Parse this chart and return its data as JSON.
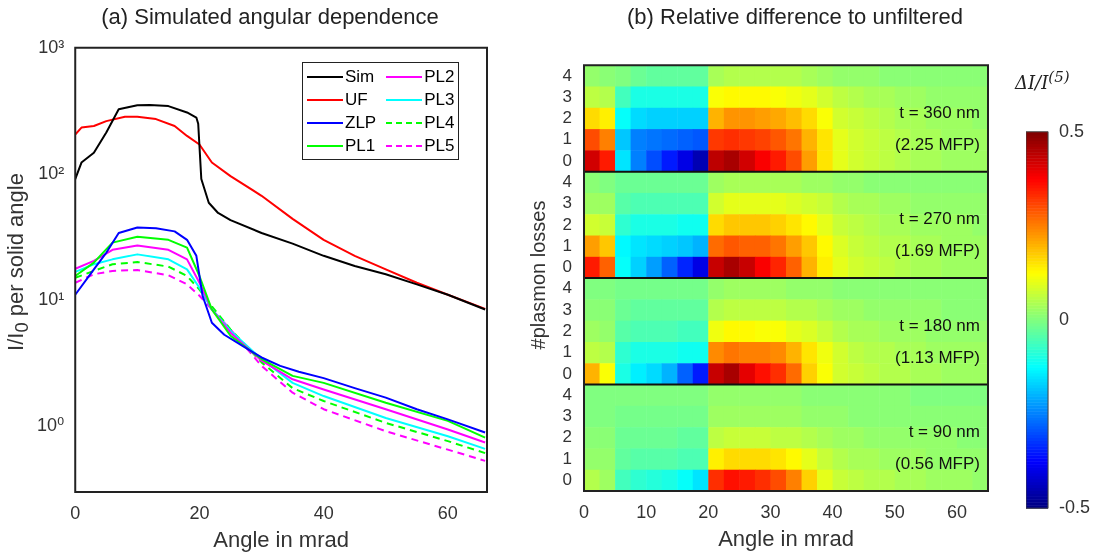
{
  "chart_data": [
    {
      "type": "line",
      "title": "(a) Simulated angular dependence",
      "xlabel": "Angle in mrad",
      "ylabel": "I/I$_{0}$ per solid angle",
      "log": "y",
      "legend": "top right",
      "marker": "none",
      "xlim": [
        0,
        66.3
      ],
      "xticks": [
        0,
        20,
        40,
        60
      ],
      "ylim": [
        0.3,
        1000
      ],
      "yticks": [
        {
          "value": 1,
          "label": "10⁰"
        },
        {
          "value": 10,
          "label": "10¹"
        },
        {
          "value": 100,
          "label": "10²"
        },
        {
          "value": 1000,
          "label": "10³"
        }
      ],
      "series": [
        {
          "name": "Sim",
          "color": "#000000",
          "line_style": "solid",
          "x": [
            0,
            1,
            3,
            5,
            7,
            10,
            12,
            15,
            18,
            19.5,
            19.8,
            20.3,
            21.5,
            23,
            25,
            30,
            35,
            40,
            45,
            50,
            55,
            60,
            66
          ],
          "values": [
            91,
            123,
            147,
            213,
            325,
            350,
            352,
            345,
            307,
            280,
            250,
            91,
            59,
            49,
            43,
            34,
            28,
            22.4,
            18.6,
            16,
            13.3,
            11,
            8.4
          ]
        },
        {
          "name": "UF",
          "color": "#ff0000",
          "line_style": "solid",
          "x": [
            0,
            1,
            3,
            5,
            8,
            10,
            13,
            16,
            18,
            20,
            22,
            25,
            30,
            35,
            40,
            45,
            50,
            55,
            60,
            66
          ],
          "values": [
            205,
            233,
            240,
            262,
            284,
            284,
            272,
            240,
            200,
            171,
            123,
            96,
            67,
            44,
            30,
            22.4,
            17.5,
            13.7,
            11,
            8.5
          ]
        },
        {
          "name": "ZLP",
          "color": "#0000ff",
          "line_style": "solid",
          "x": [
            0,
            3,
            5,
            7,
            10,
            13,
            16,
            18,
            19.5,
            20.5,
            22,
            24,
            27,
            30,
            33,
            36,
            40,
            45,
            50,
            55,
            60,
            66
          ],
          "values": [
            11,
            17.5,
            23.7,
            34,
            37.6,
            37,
            35,
            30,
            22.4,
            10.8,
            6.6,
            5.3,
            4.3,
            3.5,
            3,
            2.7,
            2.4,
            2,
            1.68,
            1.36,
            1.13,
            0.89
          ]
        },
        {
          "name": "PL1",
          "color": "#00ff00",
          "line_style": "solid",
          "x": [
            0,
            3,
            6,
            10,
            15,
            18,
            20,
            22,
            25,
            30,
            35,
            40,
            50,
            60,
            66
          ],
          "values": [
            15.5,
            19.8,
            28.5,
            31.7,
            30,
            26,
            15.5,
            8.4,
            5.2,
            3.4,
            2.5,
            2.2,
            1.53,
            1.1,
            0.81
          ]
        },
        {
          "name": "PL2",
          "color": "#ff00ff",
          "line_style": "solid",
          "x": [
            0,
            3,
            6,
            10,
            15,
            18,
            20,
            22,
            25,
            30,
            35,
            40,
            50,
            60,
            66
          ],
          "values": [
            17.7,
            20.4,
            25,
            27,
            25,
            21,
            13.7,
            8.4,
            5.5,
            3.3,
            2.35,
            1.95,
            1.36,
            0.94,
            0.74
          ]
        },
        {
          "name": "PL3",
          "color": "#00ffff",
          "line_style": "solid",
          "x": [
            0,
            3,
            6,
            10,
            15,
            18,
            20,
            22,
            25,
            30,
            35,
            40,
            50,
            60,
            66
          ],
          "values": [
            16.7,
            19.2,
            21,
            23,
            21,
            17.5,
            12.5,
            8.4,
            5.7,
            3.4,
            2.2,
            1.73,
            1.16,
            0.83,
            0.66
          ]
        },
        {
          "name": "PL4",
          "color": "#00ff00",
          "line_style": "dashed",
          "x": [
            0,
            3,
            6,
            10,
            15,
            18,
            20,
            22,
            25,
            30,
            35,
            40,
            50,
            60,
            66
          ],
          "values": [
            15,
            17,
            19.2,
            20,
            18.4,
            15.5,
            12.1,
            8.9,
            5.85,
            3.2,
            2,
            1.58,
            1.06,
            0.76,
            0.61
          ]
        },
        {
          "name": "PL5",
          "color": "#ff00ff",
          "line_style": "dashed",
          "x": [
            0,
            3,
            6,
            10,
            15,
            18,
            20,
            22,
            25,
            30,
            35,
            40,
            50,
            60,
            66
          ],
          "values": [
            13.7,
            16,
            17,
            17.3,
            15.7,
            13.3,
            10.8,
            8.4,
            5.85,
            3,
            1.84,
            1.36,
            0.91,
            0.65,
            0.53
          ]
        }
      ]
    },
    {
      "type": "heatmap",
      "title": "(b) Relative difference to unfiltered",
      "ylabel": "#plasmon losses",
      "xlabel": "Angle in mrad",
      "clabel": "ΔI/I$^{(5)}$",
      "annotations": [
        "t = 360 nm",
        "(2.25 MFP)",
        "t = 270 nm",
        "(1.69 MFP)",
        "t = 180 nm",
        "(1.13 MFP)",
        "t = 90 nm",
        "(0.56 MFP)"
      ],
      "xlim": [
        0,
        65
      ],
      "xticks": [
        0,
        10,
        20,
        30,
        40,
        50,
        60
      ],
      "clim": [
        -0.5,
        0.5
      ],
      "cticks": [
        -0.5,
        0,
        0.5
      ],
      "x": [
        1.25,
        3.75,
        6.25,
        8.75,
        11.25,
        13.75,
        16.25,
        18.75,
        21.25,
        23.75,
        26.25,
        28.75,
        31.25,
        33.75,
        36.25,
        38.75,
        41.25,
        43.75,
        46.25,
        48.75,
        51.25,
        53.75,
        56.25,
        58.75,
        61.25,
        63.75
      ],
      "y_categories": [
        "4",
        "3",
        "2",
        "1",
        "0",
        "4",
        "3",
        "2",
        "1",
        "0",
        "4",
        "3",
        "2",
        "1",
        "0",
        "4",
        "3",
        "2",
        "1",
        "0"
      ],
      "cells": [
        [
          0.02,
          0.01,
          0,
          -0.02,
          -0.03,
          -0.03,
          -0.03,
          -0.03,
          0.04,
          0.05,
          0.05,
          0.05,
          0.05,
          0.05,
          0.04,
          0.03,
          0.02,
          0.02,
          0.02,
          0.01,
          0.01,
          0.01,
          0.01,
          0.01,
          0.01,
          0.01
        ],
        [
          0.06,
          0.05,
          -0.06,
          -0.1,
          -0.1,
          -0.1,
          -0.1,
          -0.1,
          0.12,
          0.13,
          0.13,
          0.13,
          0.12,
          0.11,
          0.1,
          0.08,
          0.06,
          0.05,
          0.04,
          0.04,
          0.03,
          0.03,
          0.02,
          0.02,
          0.02,
          0.02
        ],
        [
          0.16,
          0.14,
          -0.12,
          -0.16,
          -0.17,
          -0.17,
          -0.17,
          -0.17,
          0.2,
          0.23,
          0.23,
          0.22,
          0.21,
          0.19,
          0.16,
          0.12,
          0.08,
          0.07,
          0.06,
          0.05,
          0.04,
          0.04,
          0.03,
          0.03,
          0.03,
          0.02
        ],
        [
          0.3,
          0.25,
          -0.18,
          -0.25,
          -0.26,
          -0.27,
          -0.28,
          -0.29,
          0.32,
          0.33,
          0.32,
          0.31,
          0.29,
          0.26,
          0.2,
          0.15,
          0.1,
          0.08,
          0.07,
          0.06,
          0.05,
          0.04,
          0.04,
          0.03,
          0.03,
          0.03
        ],
        [
          0.42,
          0.35,
          -0.15,
          -0.25,
          -0.3,
          -0.35,
          -0.4,
          -0.45,
          0.44,
          0.46,
          0.42,
          0.38,
          0.35,
          0.3,
          0.22,
          0.15,
          0.1,
          0.08,
          0.07,
          0.06,
          0.05,
          0.04,
          0.04,
          0.03,
          0.03,
          0.03
        ],
        [
          0.01,
          0,
          -0.02,
          -0.02,
          -0.02,
          -0.02,
          -0.02,
          -0.02,
          0.03,
          0.04,
          0.04,
          0.04,
          0.04,
          0.04,
          0.03,
          0.03,
          0.02,
          0.02,
          0.01,
          0.01,
          0.01,
          0.01,
          0.01,
          0.01,
          0.01,
          0.01
        ],
        [
          0.03,
          0.03,
          -0.04,
          -0.05,
          -0.05,
          -0.05,
          -0.05,
          -0.05,
          0.08,
          0.1,
          0.1,
          0.1,
          0.1,
          0.09,
          0.08,
          0.07,
          0.05,
          0.04,
          0.04,
          0.03,
          0.03,
          0.02,
          0.02,
          0.02,
          0.02,
          0.02
        ],
        [
          0.08,
          0.07,
          -0.08,
          -0.1,
          -0.1,
          -0.1,
          -0.11,
          -0.11,
          0.16,
          0.18,
          0.18,
          0.18,
          0.17,
          0.15,
          0.13,
          0.1,
          0.07,
          0.06,
          0.05,
          0.04,
          0.04,
          0.03,
          0.03,
          0.03,
          0.03,
          0.02
        ],
        [
          0.22,
          0.18,
          -0.13,
          -0.15,
          -0.16,
          -0.17,
          -0.18,
          -0.2,
          0.27,
          0.29,
          0.28,
          0.28,
          0.26,
          0.22,
          0.18,
          0.13,
          0.09,
          0.07,
          0.06,
          0.05,
          0.05,
          0.04,
          0.04,
          0.03,
          0.03,
          0.03
        ],
        [
          0.35,
          0.28,
          -0.12,
          -0.17,
          -0.22,
          -0.28,
          -0.34,
          -0.4,
          0.43,
          0.46,
          0.43,
          0.38,
          0.34,
          0.28,
          0.2,
          0.14,
          0.1,
          0.08,
          0.07,
          0.06,
          0.05,
          0.04,
          0.04,
          0.03,
          0.03,
          0.03
        ],
        [
          0,
          0,
          -0.01,
          -0.01,
          -0.01,
          -0.01,
          -0.01,
          -0.01,
          0.02,
          0.03,
          0.03,
          0.03,
          0.03,
          0.02,
          0.02,
          0.02,
          0.01,
          0.01,
          0.01,
          0.01,
          0.01,
          0.01,
          0.01,
          0.01,
          0.01,
          0.01
        ],
        [
          0.01,
          0.01,
          -0.02,
          -0.03,
          -0.03,
          -0.03,
          -0.03,
          -0.03,
          0.05,
          0.06,
          0.06,
          0.06,
          0.06,
          0.05,
          0.05,
          0.04,
          0.03,
          0.03,
          0.02,
          0.02,
          0.02,
          0.02,
          0.02,
          0.01,
          0.01,
          0.01
        ],
        [
          0.03,
          0.02,
          -0.04,
          -0.05,
          -0.05,
          -0.05,
          -0.06,
          -0.06,
          0.11,
          0.13,
          0.13,
          0.12,
          0.12,
          0.1,
          0.09,
          0.07,
          0.05,
          0.04,
          0.04,
          0.03,
          0.03,
          0.03,
          0.02,
          0.02,
          0.02,
          0.02
        ],
        [
          0.06,
          0.05,
          -0.08,
          -0.1,
          -0.1,
          -0.1,
          -0.11,
          -0.11,
          0.24,
          0.26,
          0.25,
          0.25,
          0.24,
          0.2,
          0.15,
          0.11,
          0.08,
          0.06,
          0.05,
          0.05,
          0.04,
          0.04,
          0.03,
          0.03,
          0.03,
          0.03
        ],
        [
          0.2,
          0.12,
          -0.1,
          -0.14,
          -0.16,
          -0.2,
          -0.28,
          -0.35,
          0.43,
          0.46,
          0.4,
          0.36,
          0.33,
          0.27,
          0.17,
          0.12,
          0.08,
          0.07,
          0.06,
          0.05,
          0.05,
          0.04,
          0.04,
          0.03,
          0.03,
          0.03
        ],
        [
          0,
          0,
          0,
          0,
          0,
          0,
          0,
          0,
          0.02,
          0.02,
          0.02,
          0.02,
          0.02,
          0.02,
          0.01,
          0.01,
          0.01,
          0.01,
          0.01,
          0.01,
          0.01,
          0,
          0,
          0,
          0,
          0
        ],
        [
          0,
          0,
          -0.01,
          -0.01,
          -0.01,
          -0.01,
          -0.01,
          -0.01,
          0.03,
          0.03,
          0.03,
          0.03,
          0.03,
          0.03,
          0.02,
          0.02,
          0.02,
          0.01,
          0.01,
          0.01,
          0.01,
          0.01,
          0.01,
          0.01,
          0.01,
          0.01
        ],
        [
          0.01,
          0.01,
          -0.02,
          -0.02,
          -0.02,
          -0.02,
          -0.03,
          -0.03,
          0.06,
          0.07,
          0.07,
          0.07,
          0.06,
          0.06,
          0.05,
          0.04,
          0.03,
          0.03,
          0.02,
          0.02,
          0.02,
          0.02,
          0.02,
          0.02,
          0.01,
          0.01
        ],
        [
          0.02,
          0.02,
          -0.03,
          -0.04,
          -0.04,
          -0.04,
          -0.05,
          -0.05,
          0.14,
          0.16,
          0.16,
          0.16,
          0.15,
          0.13,
          0.1,
          0.07,
          0.05,
          0.04,
          0.04,
          0.03,
          0.03,
          0.03,
          0.02,
          0.02,
          0.02,
          0.02
        ],
        [
          0.05,
          0.03,
          -0.06,
          -0.08,
          -0.09,
          -0.1,
          -0.12,
          -0.15,
          0.33,
          0.36,
          0.35,
          0.33,
          0.3,
          0.25,
          0.17,
          0.1,
          0.07,
          0.06,
          0.05,
          0.05,
          0.04,
          0.04,
          0.03,
          0.03,
          0.03,
          0.02
        ]
      ]
    }
  ]
}
